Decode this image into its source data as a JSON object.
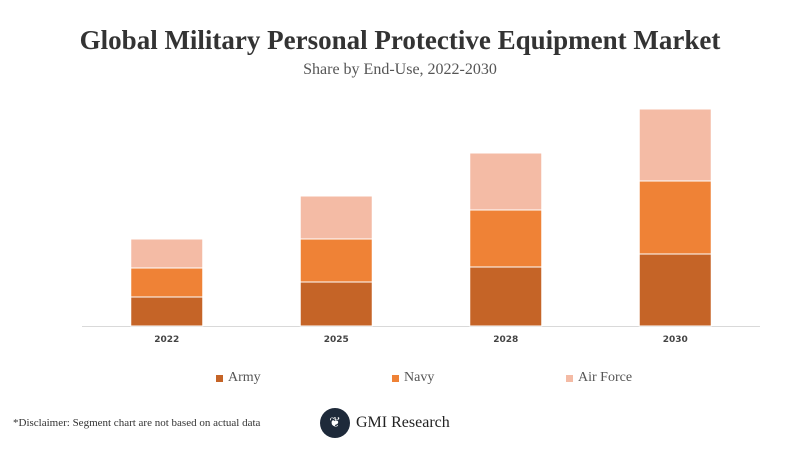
{
  "chart_data": {
    "type": "bar",
    "stacked": true,
    "title": "Global Military Personal Protective Equipment Market",
    "subtitle": "Share by End-Use, 2022-2030",
    "categories": [
      "2022",
      "2025",
      "2028",
      "2030"
    ],
    "series": [
      {
        "name": "Army",
        "values": [
          29,
          44,
          59,
          72
        ],
        "color": "#c56427"
      },
      {
        "name": "Navy",
        "values": [
          29,
          43,
          57,
          73
        ],
        "color": "#ef8236"
      },
      {
        "name": "Air Force",
        "values": [
          29,
          43,
          57,
          72
        ],
        "color": "#f4bba5"
      }
    ],
    "ylim": [
      0,
      220
    ],
    "grid": false,
    "legend_position": "bottom"
  },
  "footer": {
    "disclaimer": "*Disclaimer:  Segment chart are not based on actual data",
    "logo_text": "GMI Research"
  }
}
